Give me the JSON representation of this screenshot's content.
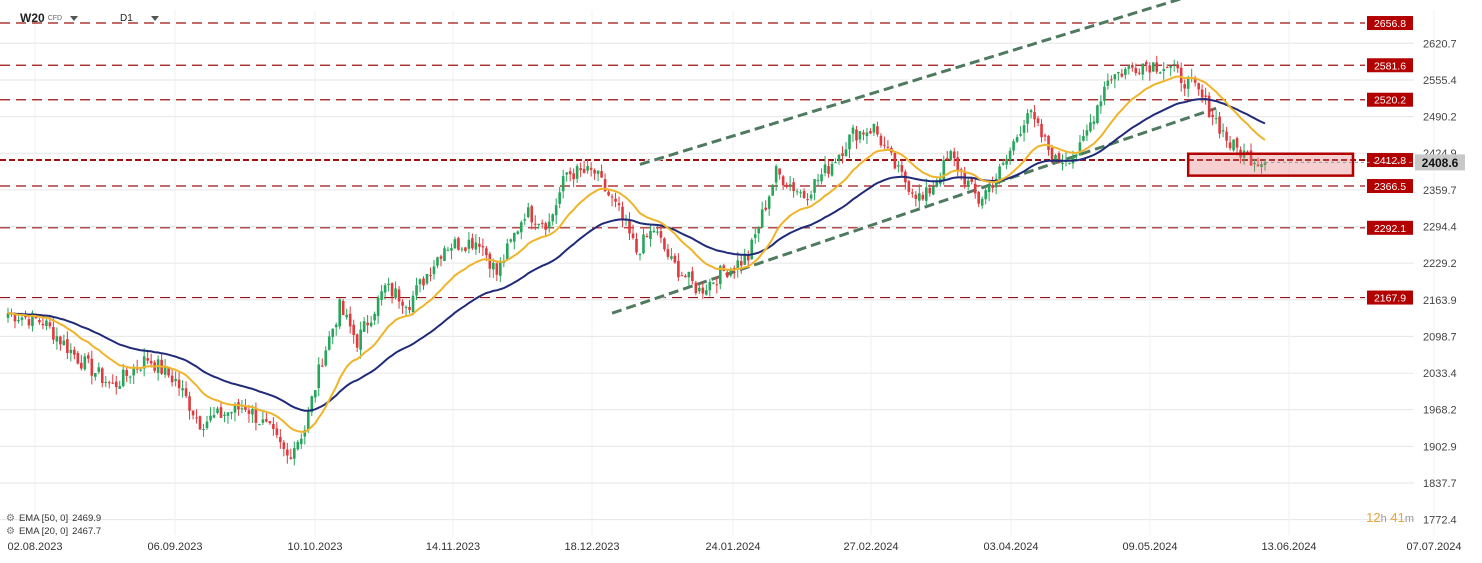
{
  "header": {
    "symbol": "W20",
    "instrument_type": "CFD",
    "timeframe": "D1"
  },
  "indicators": [
    {
      "label": "EMA [50, 0]",
      "value": "2469.9",
      "color": "#1f2b78"
    },
    {
      "label": "EMA [20, 0]",
      "value": "2467.7",
      "color": "#f0b429"
    }
  ],
  "countdown": {
    "h": "12",
    "h_unit": "h",
    "m": "41",
    "m_unit": "m"
  },
  "chart_data": {
    "type": "candlestick",
    "y_range": [
      1745,
      2680
    ],
    "y_ticks": [
      2620.7,
      2555.4,
      2490.2,
      2424.9,
      2359.7,
      2294.4,
      2229.2,
      2163.9,
      2098.7,
      2033.4,
      1968.2,
      1902.9,
      1837.7,
      1772.4
    ],
    "x_ticks": [
      "02.08.2023",
      "06.09.2023",
      "10.10.2023",
      "14.11.2023",
      "18.12.2023",
      "24.01.2024",
      "27.02.2024",
      "03.04.2024",
      "09.05.2024",
      "13.06.2024",
      "07.07.2024"
    ],
    "current_price": "2408.6",
    "horizontal_levels": [
      "2656.8",
      "2581.6",
      "2520.2",
      "2412.8",
      "2366.5",
      "2292.1",
      "2167.9"
    ],
    "colors": {
      "up": "#26a65b",
      "down": "#e0393e",
      "level_label_bg": "#b30000",
      "grid": "#e6e6e6",
      "channel": "#4f7a60",
      "current_price_bg": "#c8c8c8"
    },
    "key_points": [
      [
        0,
        2140
      ],
      [
        10,
        2125
      ],
      [
        20,
        2060
      ],
      [
        30,
        2010
      ],
      [
        40,
        2060
      ],
      [
        48,
        2020
      ],
      [
        55,
        1945
      ],
      [
        68,
        1975
      ],
      [
        75,
        1930
      ],
      [
        80,
        1885
      ],
      [
        85,
        1935
      ],
      [
        90,
        2060
      ],
      [
        95,
        2150
      ],
      [
        100,
        2090
      ],
      [
        108,
        2185
      ],
      [
        115,
        2160
      ],
      [
        125,
        2260
      ],
      [
        135,
        2270
      ],
      [
        140,
        2210
      ],
      [
        148,
        2320
      ],
      [
        155,
        2300
      ],
      [
        160,
        2390
      ],
      [
        168,
        2390
      ],
      [
        175,
        2320
      ],
      [
        180,
        2250
      ],
      [
        185,
        2290
      ],
      [
        190,
        2230
      ],
      [
        198,
        2180
      ],
      [
        205,
        2215
      ],
      [
        212,
        2240
      ],
      [
        220,
        2390
      ],
      [
        228,
        2350
      ],
      [
        235,
        2400
      ],
      [
        242,
        2460
      ],
      [
        248,
        2470
      ],
      [
        255,
        2390
      ],
      [
        262,
        2340
      ],
      [
        270,
        2420
      ],
      [
        278,
        2340
      ],
      [
        285,
        2400
      ],
      [
        292,
        2500
      ],
      [
        300,
        2410
      ],
      [
        307,
        2430
      ],
      [
        315,
        2560
      ],
      [
        325,
        2585
      ],
      [
        332,
        2580
      ],
      [
        340,
        2540
      ],
      [
        345,
        2495
      ],
      [
        350,
        2440
      ],
      [
        355,
        2420
      ],
      [
        360,
        2408.6
      ]
    ]
  }
}
